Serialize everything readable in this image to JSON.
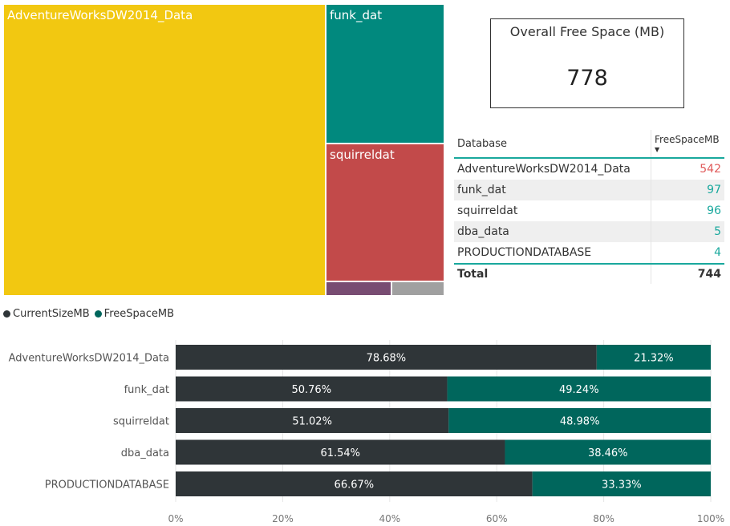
{
  "treemap": {
    "tiles": [
      {
        "label": "AdventureWorksDW2014_Data",
        "value": 542,
        "color": "#f2c811"
      },
      {
        "label": "funk_dat",
        "value": 97,
        "color": "#01897e"
      },
      {
        "label": "squirreldat",
        "value": 96,
        "color": "#c24a4a"
      },
      {
        "label": "",
        "value": 5,
        "color": "#784c72"
      },
      {
        "label": "",
        "value": 4,
        "color": "#a0a0a0"
      }
    ]
  },
  "kpi": {
    "title": "Overall Free Space (MB)",
    "value": "778"
  },
  "table": {
    "header_name": "Database",
    "header_value": "FreeSpaceMB",
    "sort_icon": "▼",
    "rows": [
      {
        "name": "AdventureWorksDW2014_Data",
        "value": "542",
        "color": "#e05a5a"
      },
      {
        "name": "funk_dat",
        "value": "97",
        "color": "#19a89d"
      },
      {
        "name": "squirreldat",
        "value": "96",
        "color": "#19a89d"
      },
      {
        "name": "dba_data",
        "value": "5",
        "color": "#19a89d"
      },
      {
        "name": "PRODUCTIONDATABASE",
        "value": "4",
        "color": "#19a89d"
      }
    ],
    "total_label": "Total",
    "total_value": "744"
  },
  "legend": {
    "items": [
      {
        "label": "CurrentSizeMB",
        "color": "#2f3538"
      },
      {
        "label": "FreeSpaceMB",
        "color": "#00665c"
      }
    ]
  },
  "chart_data": {
    "type": "bar",
    "orientation": "horizontal",
    "stacked": "100%",
    "categories": [
      "AdventureWorksDW2014_Data",
      "funk_dat",
      "squirreldat",
      "dba_data",
      "PRODUCTIONDATABASE"
    ],
    "series": [
      {
        "name": "CurrentSizeMB",
        "color": "#2f3538",
        "values": [
          78.68,
          50.76,
          51.02,
          61.54,
          66.67
        ],
        "labels": [
          "78.68%",
          "50.76%",
          "51.02%",
          "61.54%",
          "66.67%"
        ]
      },
      {
        "name": "FreeSpaceMB",
        "color": "#00665c",
        "values": [
          21.32,
          49.24,
          48.98,
          38.46,
          33.33
        ],
        "labels": [
          "21.32%",
          "49.24%",
          "48.98%",
          "38.46%",
          "33.33%"
        ]
      }
    ],
    "x_ticks": [
      "0%",
      "20%",
      "40%",
      "60%",
      "80%",
      "100%"
    ],
    "xlim": [
      0,
      100
    ],
    "legend_position": "top-left",
    "grid": true
  }
}
